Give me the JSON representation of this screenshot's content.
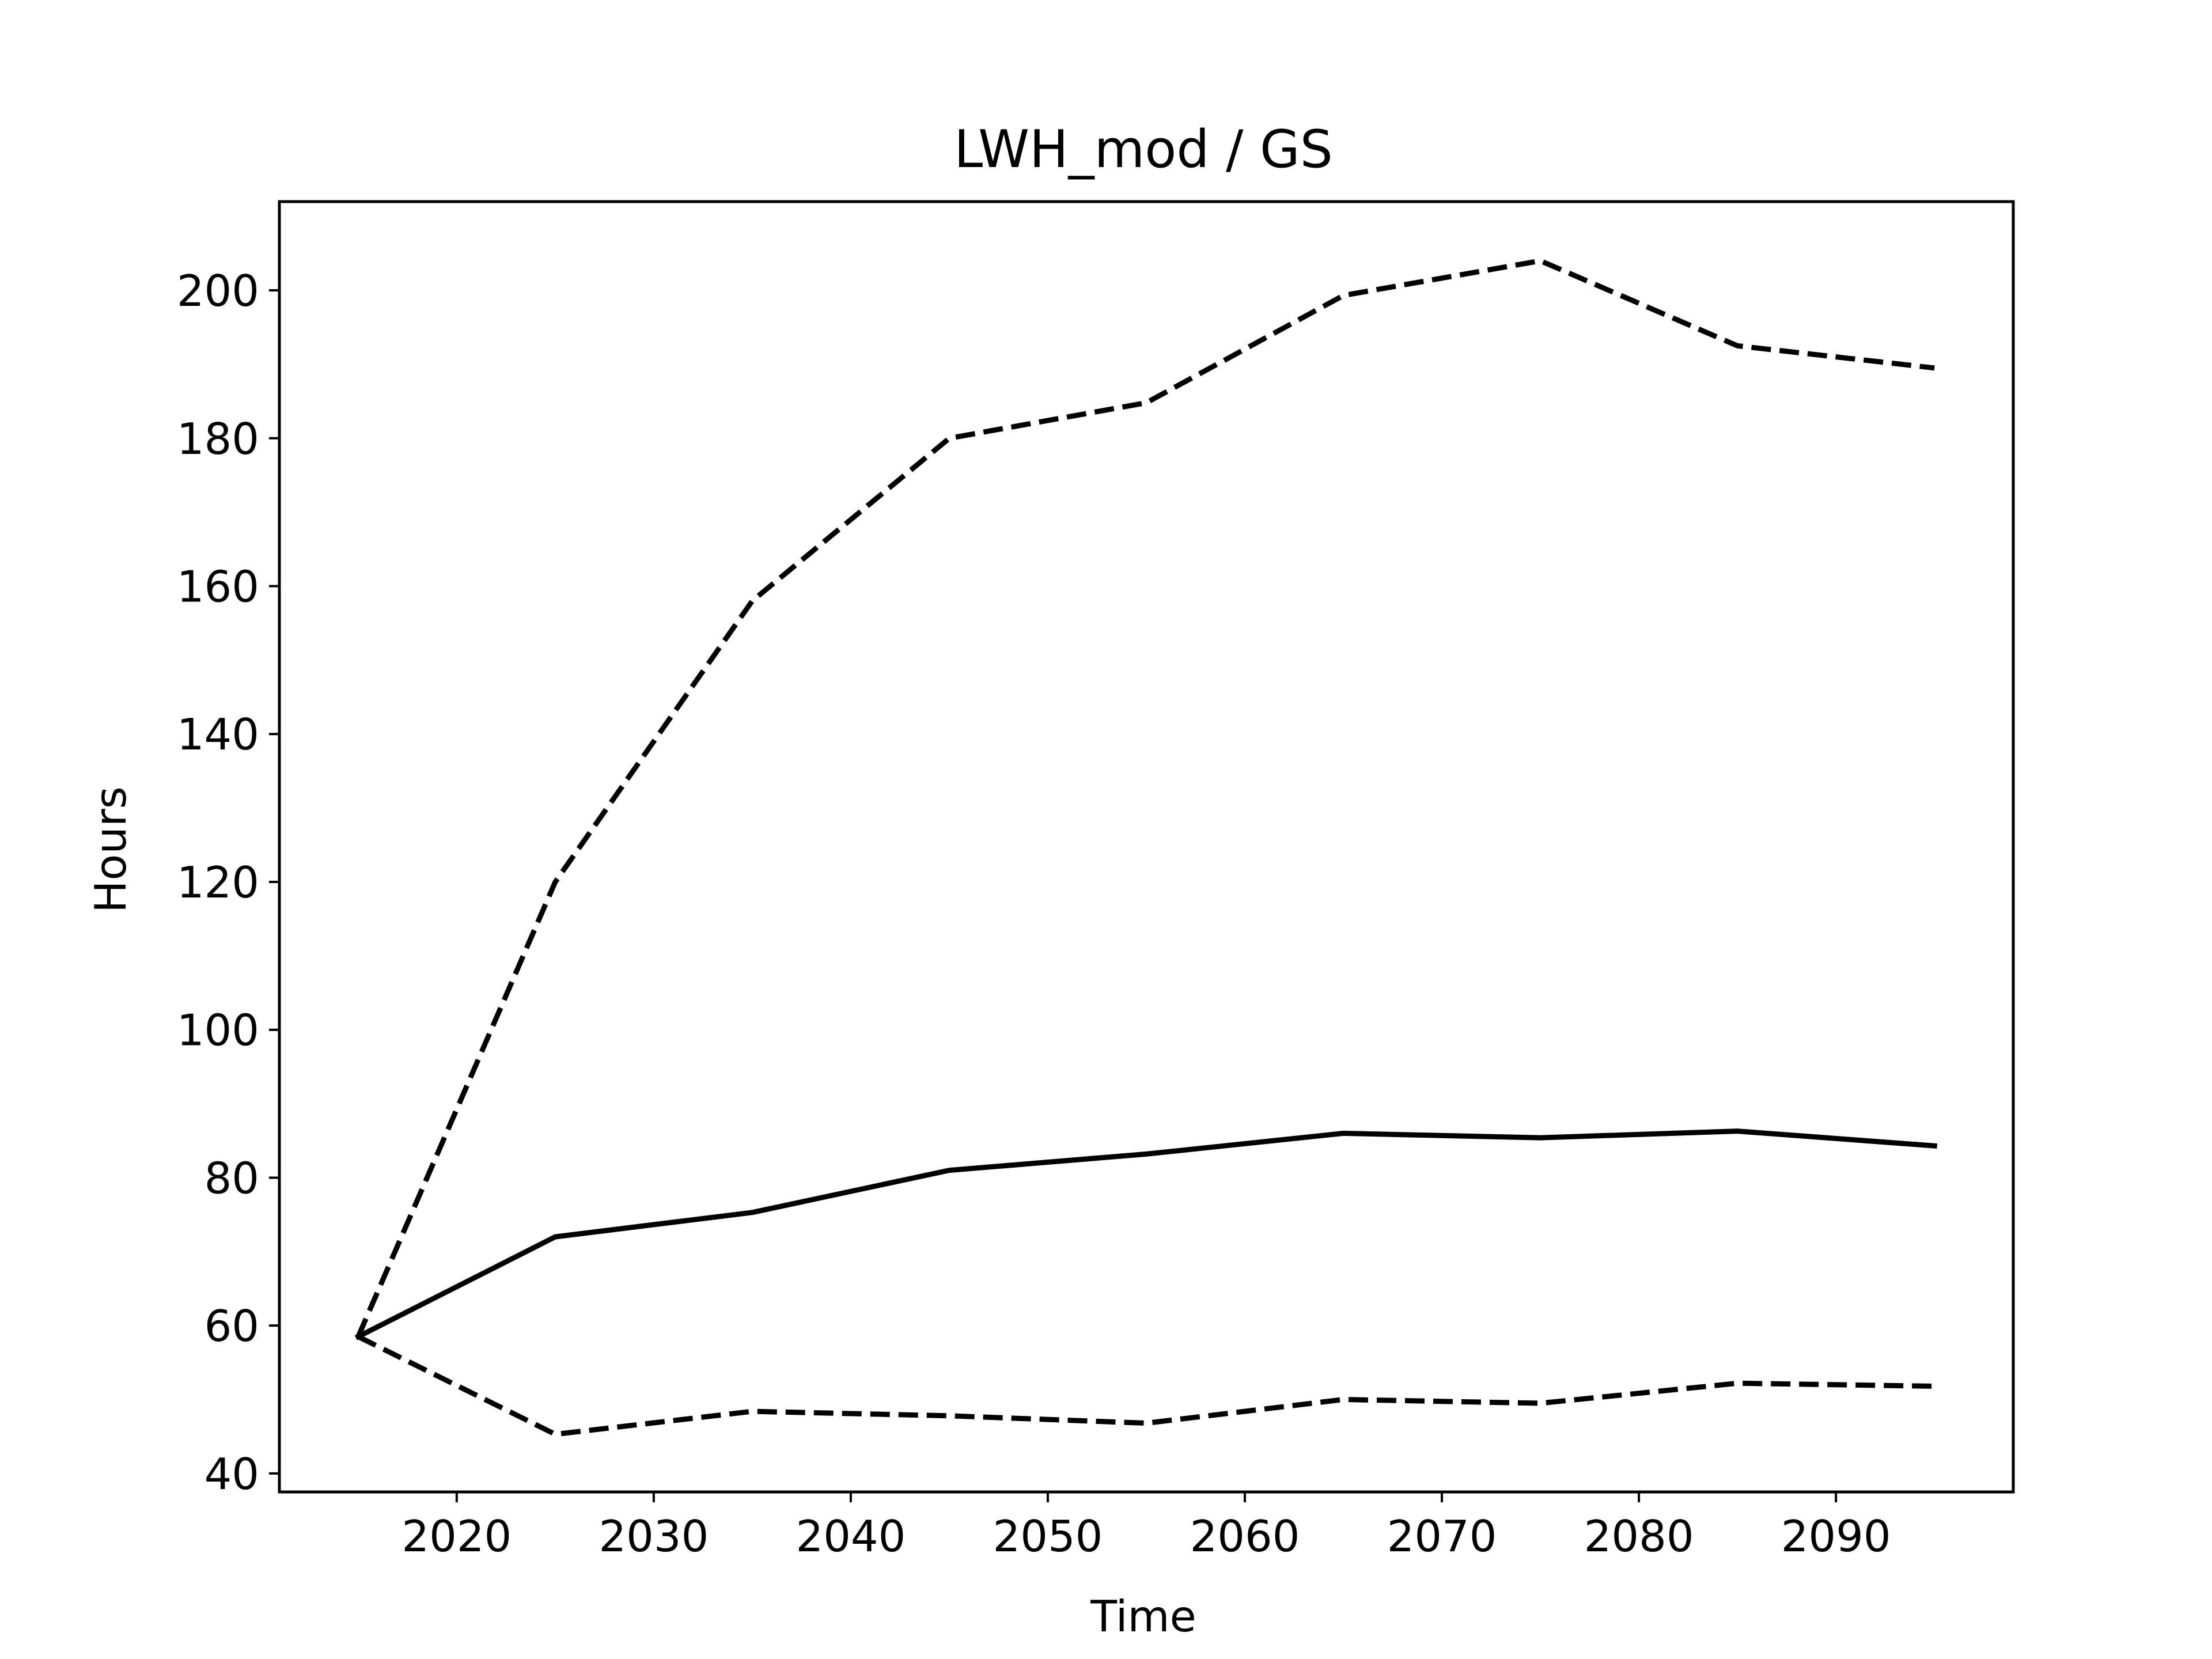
{
  "chart_data": {
    "type": "line",
    "title": "LWH_mod / GS",
    "xlabel": "Time",
    "ylabel": "Hours",
    "xlim": [
      2011,
      2099
    ],
    "ylim": [
      37.5,
      212
    ],
    "xticks": [
      2020,
      2030,
      2040,
      2050,
      2060,
      2070,
      2080,
      2090
    ],
    "yticks": [
      40,
      60,
      80,
      100,
      120,
      140,
      160,
      180,
      200
    ],
    "grid": false,
    "legend": "none",
    "x": [
      2015,
      2025,
      2035,
      2045,
      2055,
      2065,
      2075,
      2085,
      2095
    ],
    "series": [
      {
        "style": "solid",
        "color": "#000000",
        "values": [
          58.5,
          72,
          75.3,
          81,
          83.2,
          86,
          85.4,
          86.3,
          84.3
        ]
      },
      {
        "style": "dashed",
        "color": "#000000",
        "values": [
          58.5,
          120,
          158,
          180,
          184.8,
          199.3,
          204,
          192.5,
          189.5
        ]
      },
      {
        "style": "dashed",
        "color": "#000000",
        "values": [
          58.5,
          45.3,
          48.4,
          47.8,
          46.8,
          50,
          49.5,
          52.2,
          51.8
        ]
      }
    ]
  }
}
